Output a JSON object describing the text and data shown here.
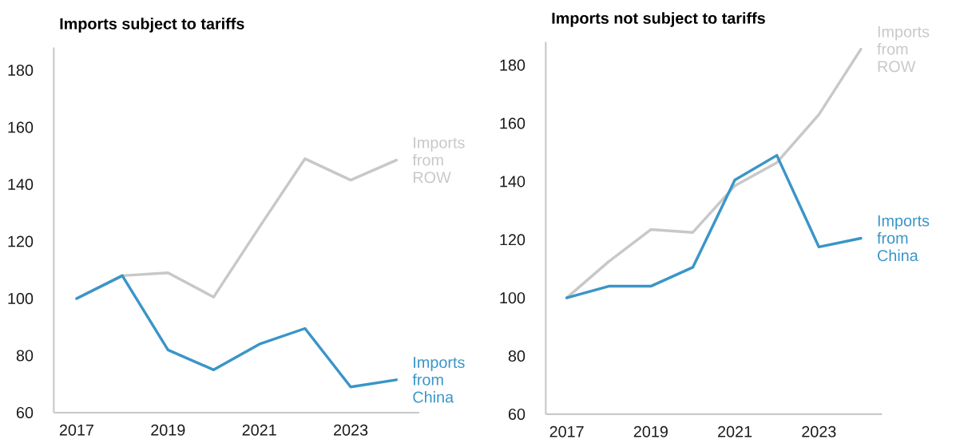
{
  "chart_data": [
    {
      "type": "line",
      "title": "Imports subject to tariffs",
      "x": [
        2017,
        2018,
        2019,
        2020,
        2021,
        2022,
        2023,
        2024
      ],
      "xlim": [
        2016.5,
        2024.5
      ],
      "xticks": [
        2017,
        2019,
        2021,
        2023
      ],
      "ylim": [
        60,
        188
      ],
      "yticks": [
        60,
        80,
        100,
        120,
        140,
        160,
        180
      ],
      "series": [
        {
          "name": "Imports from ROW",
          "color": "#c8c8c8",
          "values": [
            100,
            108,
            109,
            100.5,
            125,
            149,
            141.5,
            148.5
          ]
        },
        {
          "name": "Imports from China",
          "color": "#3a95c8",
          "values": [
            100,
            108,
            82,
            75,
            84,
            89.5,
            69,
            71.5
          ]
        }
      ]
    },
    {
      "type": "line",
      "title": "Imports not subject to tariffs",
      "x": [
        2017,
        2018,
        2019,
        2020,
        2021,
        2022,
        2023,
        2024
      ],
      "xlim": [
        2016.5,
        2024.5
      ],
      "xticks": [
        2017,
        2019,
        2021,
        2023
      ],
      "ylim": [
        60,
        188
      ],
      "yticks": [
        60,
        80,
        100,
        120,
        140,
        160,
        180
      ],
      "series": [
        {
          "name": "Imports from ROW",
          "color": "#c8c8c8",
          "values": [
            100,
            112.5,
            123.5,
            122.5,
            138.5,
            146.5,
            163,
            185.5
          ]
        },
        {
          "name": "Imports from China",
          "color": "#3a95c8",
          "values": [
            100,
            104,
            104,
            110.5,
            140.5,
            149,
            117.5,
            120.5
          ]
        }
      ]
    }
  ]
}
